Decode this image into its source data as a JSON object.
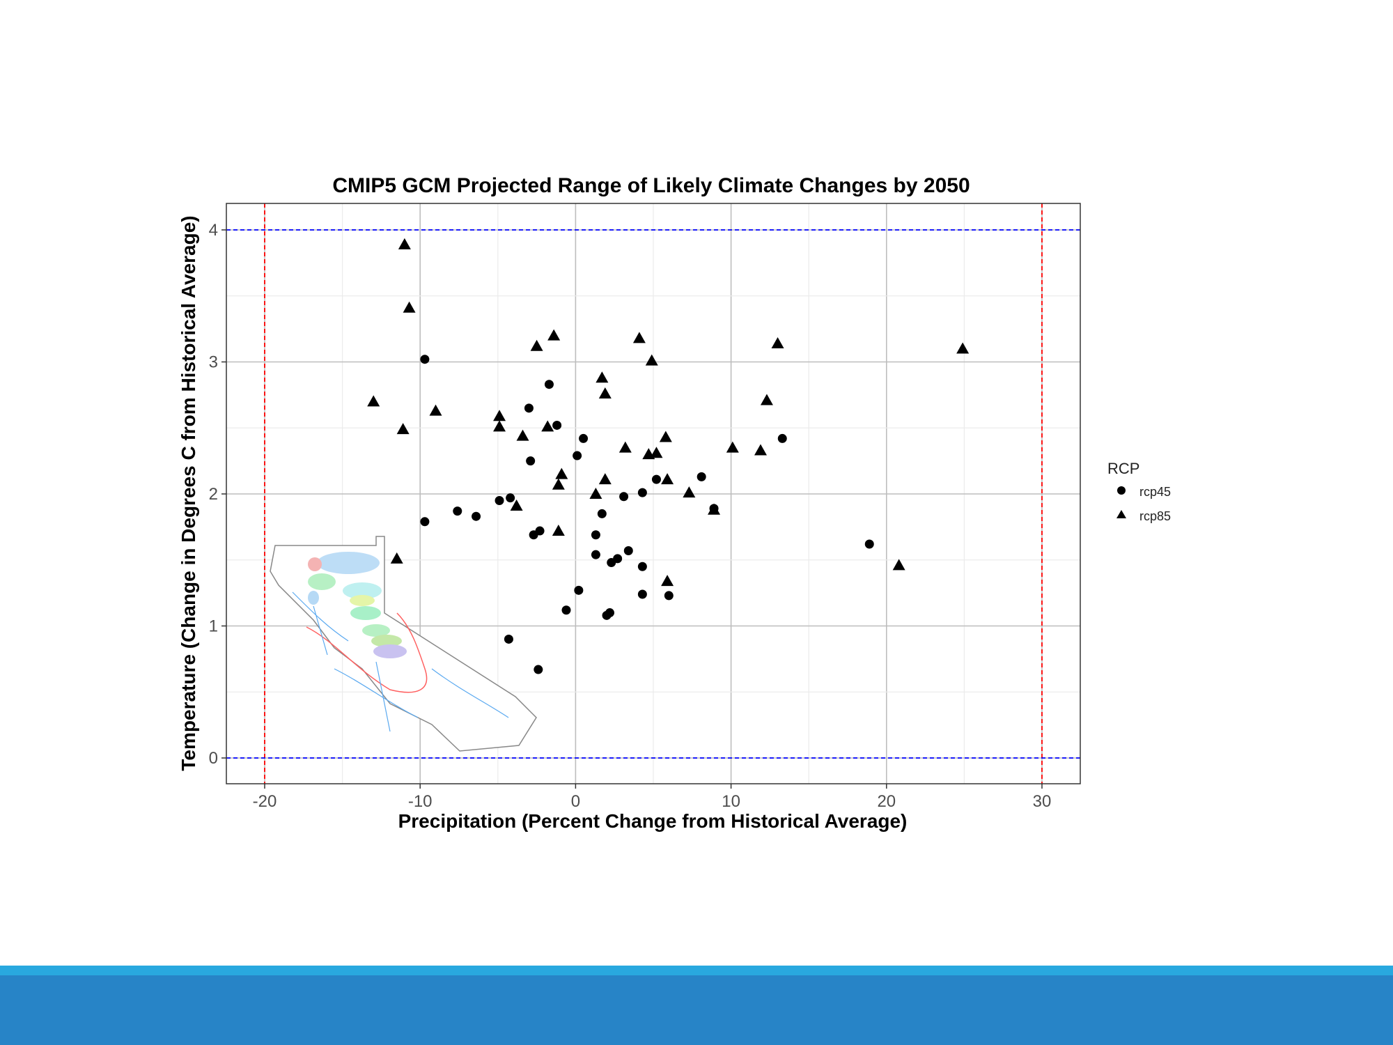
{
  "chart_data": {
    "type": "scatter",
    "title": "CMIP5 GCM Projected Range of Likely Climate Changes by 2050",
    "xlabel": "Precipitation (Percent Change from Historical Average)",
    "ylabel": "Temperature (Change in Degrees C from Historical Average)",
    "xlim": [
      -22.5,
      32.5
    ],
    "ylim": [
      -0.2,
      4.2
    ],
    "xticks": [
      -20,
      -10,
      0,
      10,
      20,
      30
    ],
    "yticks": [
      0,
      1,
      2,
      3,
      4
    ],
    "grid": true,
    "reference_lines": {
      "vertical_red_dashed": [
        -20,
        30
      ],
      "horizontal_blue_dashed": [
        0,
        4
      ],
      "colors": {
        "vertical": "#ff0000",
        "horizontal": "#0000ff"
      }
    },
    "legend": {
      "title": "RCP",
      "placement": "right"
    },
    "series": [
      {
        "name": "rcp45",
        "marker": "circle",
        "points": [
          [
            -9.7,
            3.02
          ],
          [
            -1.7,
            2.83
          ],
          [
            -3.0,
            2.65
          ],
          [
            -1.2,
            2.52
          ],
          [
            0.5,
            2.42
          ],
          [
            0.1,
            2.29
          ],
          [
            -2.9,
            2.25
          ],
          [
            5.2,
            2.11
          ],
          [
            8.1,
            2.13
          ],
          [
            -4.9,
            1.95
          ],
          [
            -4.2,
            1.97
          ],
          [
            4.3,
            2.01
          ],
          [
            3.1,
            1.98
          ],
          [
            -7.6,
            1.87
          ],
          [
            -6.4,
            1.83
          ],
          [
            -9.7,
            1.79
          ],
          [
            1.7,
            1.85
          ],
          [
            8.9,
            1.89
          ],
          [
            13.3,
            2.42
          ],
          [
            -2.7,
            1.69
          ],
          [
            -2.3,
            1.72
          ],
          [
            1.3,
            1.69
          ],
          [
            1.3,
            1.54
          ],
          [
            3.4,
            1.57
          ],
          [
            2.7,
            1.51
          ],
          [
            2.3,
            1.48
          ],
          [
            4.3,
            1.45
          ],
          [
            0.2,
            1.27
          ],
          [
            4.3,
            1.24
          ],
          [
            6.0,
            1.23
          ],
          [
            -0.6,
            1.12
          ],
          [
            2.0,
            1.08
          ],
          [
            2.2,
            1.1
          ],
          [
            -4.3,
            0.9
          ],
          [
            -2.4,
            0.67
          ],
          [
            18.9,
            1.62
          ]
        ]
      },
      {
        "name": "rcp85",
        "marker": "triangle",
        "points": [
          [
            -11.0,
            3.89
          ],
          [
            -10.7,
            3.41
          ],
          [
            -2.5,
            3.12
          ],
          [
            -1.4,
            3.2
          ],
          [
            4.1,
            3.18
          ],
          [
            4.9,
            3.01
          ],
          [
            13.0,
            3.14
          ],
          [
            24.9,
            3.1
          ],
          [
            -13.0,
            2.7
          ],
          [
            -11.1,
            2.49
          ],
          [
            -9.0,
            2.63
          ],
          [
            -4.9,
            2.59
          ],
          [
            -4.9,
            2.51
          ],
          [
            -3.4,
            2.44
          ],
          [
            1.7,
            2.88
          ],
          [
            1.9,
            2.76
          ],
          [
            -1.8,
            2.51
          ],
          [
            -0.9,
            2.15
          ],
          [
            -1.1,
            2.07
          ],
          [
            3.2,
            2.35
          ],
          [
            5.8,
            2.43
          ],
          [
            4.7,
            2.3
          ],
          [
            5.2,
            2.31
          ],
          [
            10.1,
            2.35
          ],
          [
            11.9,
            2.33
          ],
          [
            12.3,
            2.71
          ],
          [
            1.9,
            2.11
          ],
          [
            1.3,
            2.0
          ],
          [
            5.9,
            2.11
          ],
          [
            7.3,
            2.01
          ],
          [
            8.9,
            1.88
          ],
          [
            -3.8,
            1.91
          ],
          [
            -1.1,
            1.72
          ],
          [
            -11.5,
            1.51
          ],
          [
            5.9,
            1.34
          ],
          [
            20.8,
            1.46
          ]
        ]
      }
    ]
  }
}
